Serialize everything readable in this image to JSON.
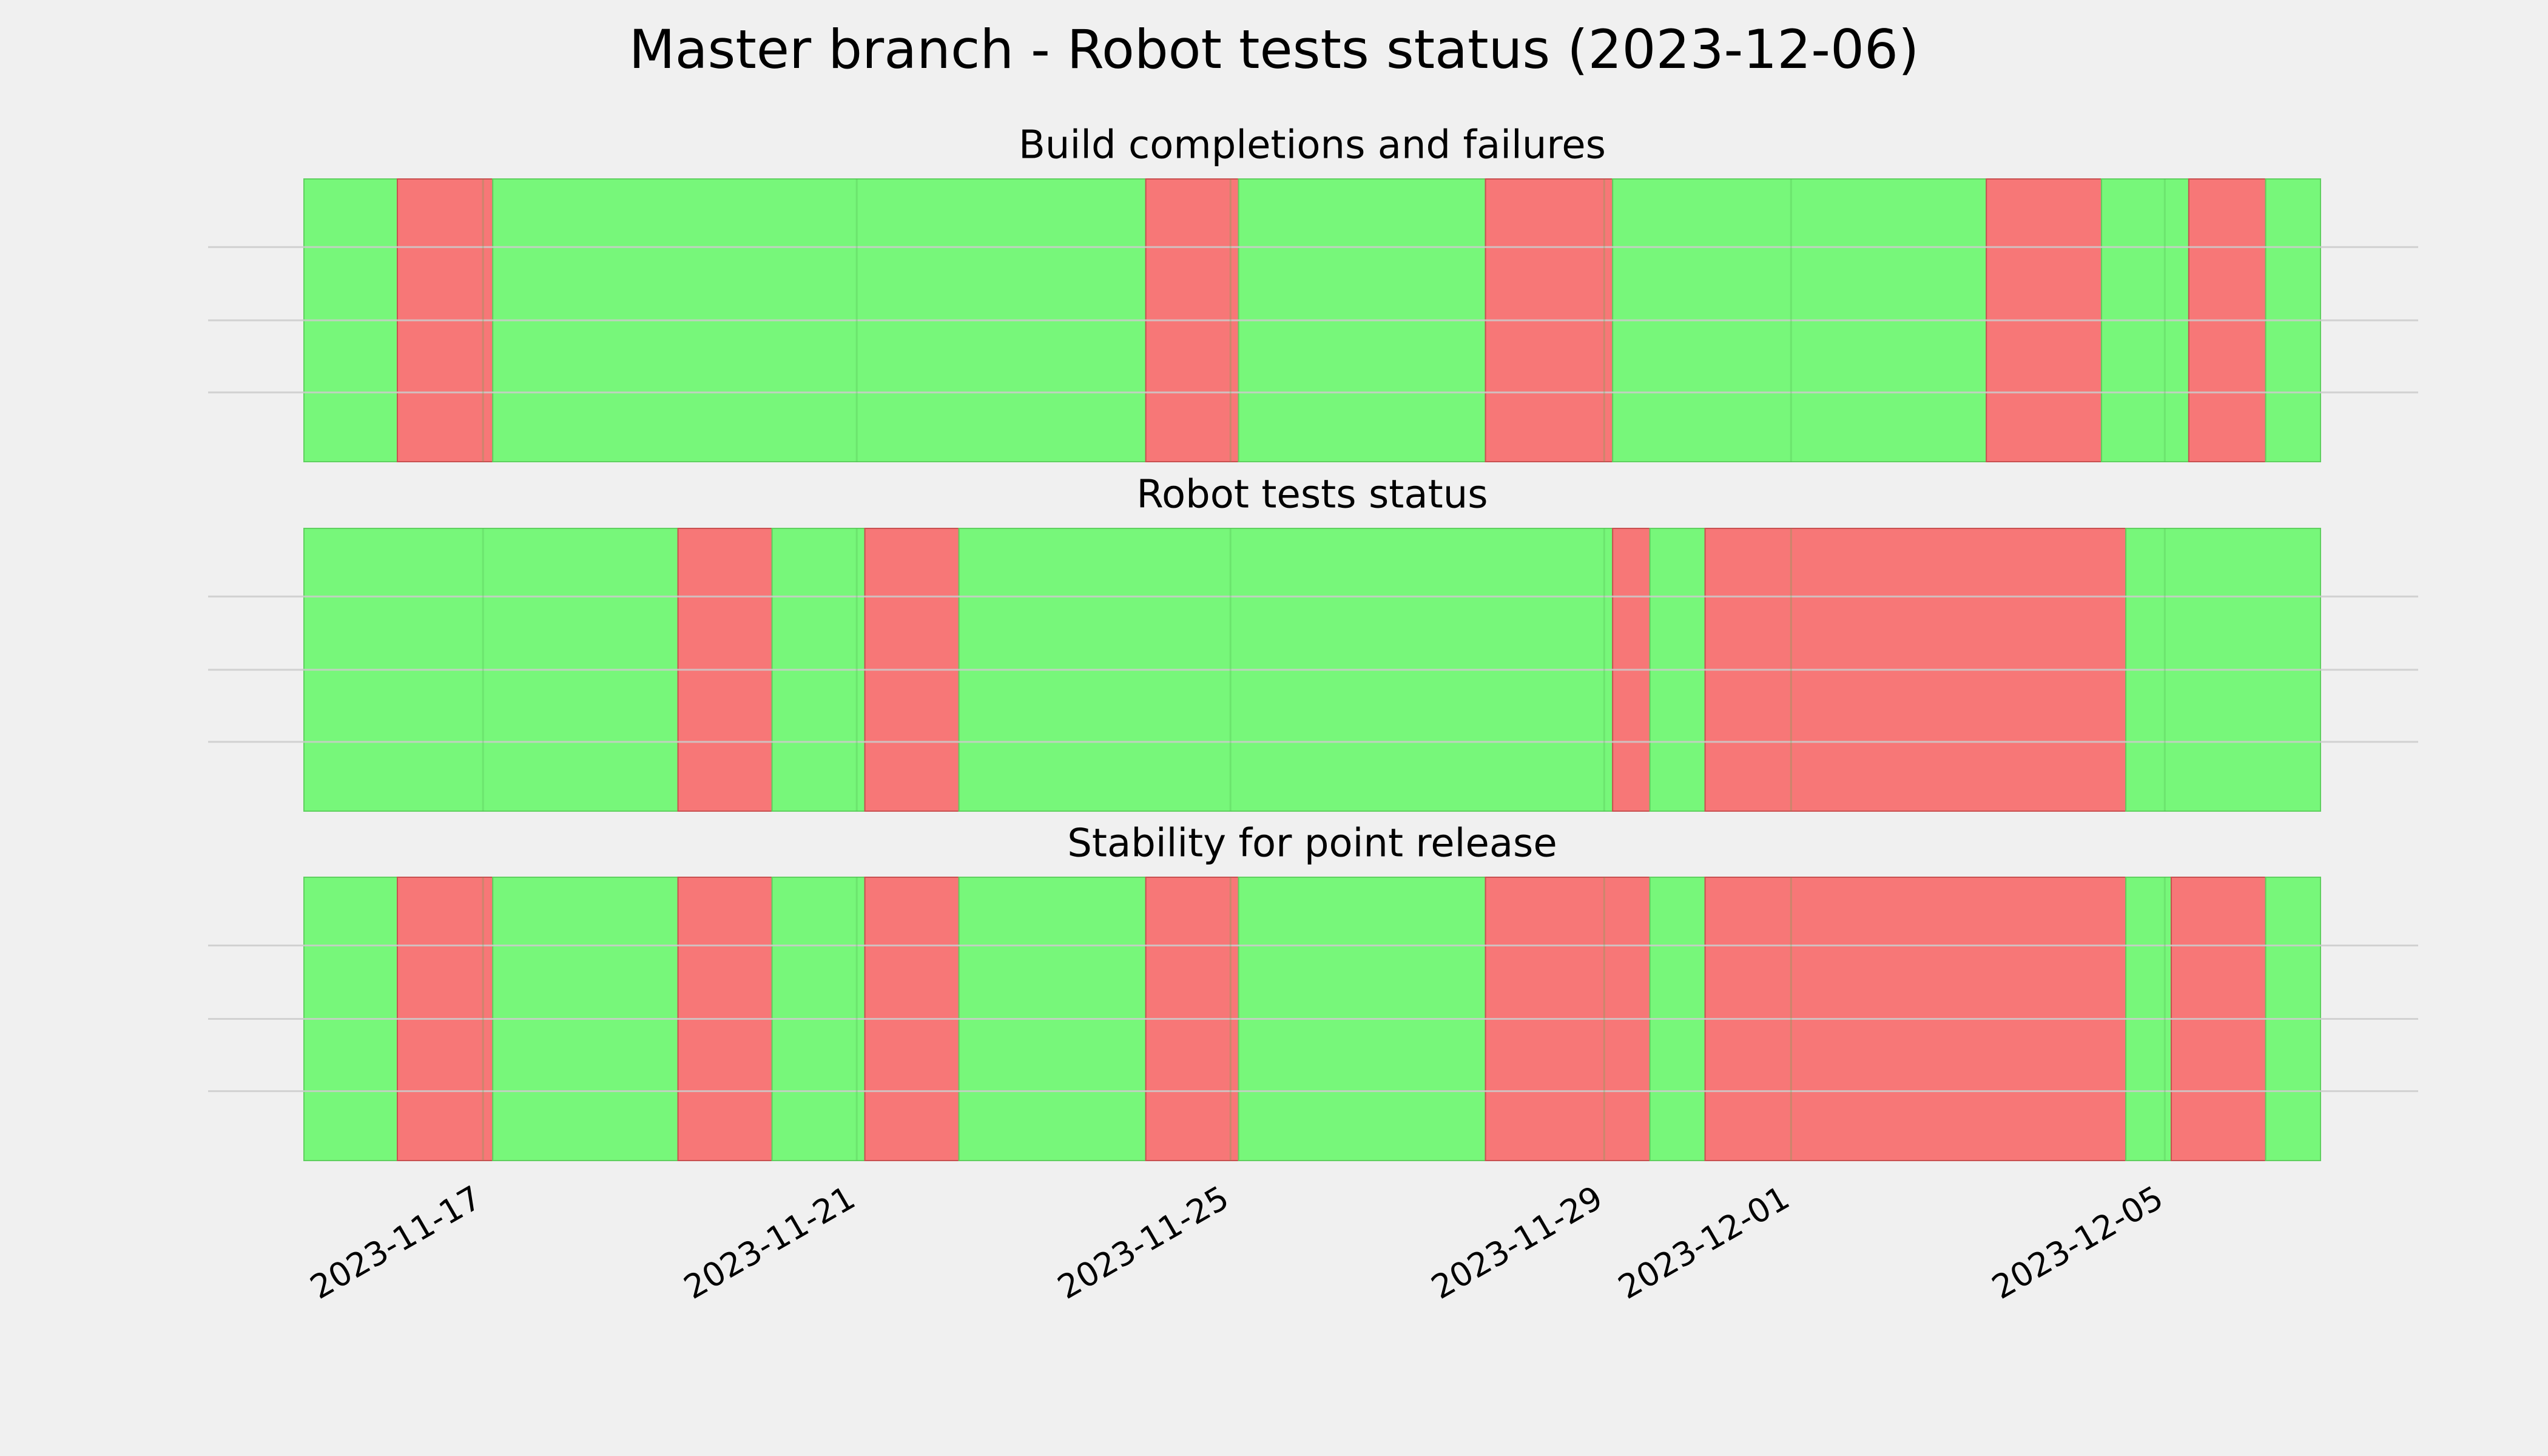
{
  "title": "Master branch - Robot tests status (2023-12-06)",
  "chart_data": [
    {
      "type": "timeline",
      "title": "Build completions and failures",
      "x": [
        "2023-11-15T02:00",
        "2023-11-16T02:00",
        "2023-11-17T02:30",
        "2023-11-24T02:15",
        "2023-11-25T02:05",
        "2023-11-27T17:30",
        "2023-11-29T02:10",
        "2023-12-03T02:10",
        "2023-12-04T07:45",
        "2023-12-05T06:10",
        "2023-12-06T01:55",
        "2023-12-06T16:00"
      ],
      "colors": [
        "#77f77a",
        "#f77777",
        "#77f77a",
        "#f77777",
        "#77f77a",
        "#f77777",
        "#77f77a",
        "#f77777",
        "#77f77a",
        "#f77777",
        "#77f77a"
      ],
      "xlim": [
        "2023-11-15T02:00",
        "2023-12-06T16:00"
      ],
      "xticks": [
        "2023-11-17",
        "2023-11-21",
        "2023-11-25",
        "2023-11-29",
        "2023-12-01",
        "2023-12-05"
      ],
      "grid": true
    },
    {
      "type": "timeline",
      "title": "Robot tests status",
      "x": [
        "2023-11-15T02:00",
        "2023-11-19T02:05",
        "2023-11-20T02:15",
        "2023-11-21T02:05",
        "2023-11-22T02:15",
        "2023-11-29T02:10",
        "2023-11-29T11:45",
        "2023-11-30T01:55",
        "2023-12-04T14:00",
        "2023-12-06T16:00"
      ],
      "colors": [
        "#77f77a",
        "#f77777",
        "#77f77a",
        "#f77777",
        "#77f77a",
        "#f77777",
        "#77f77a",
        "#f77777",
        "#77f77a"
      ],
      "xlim": [
        "2023-11-15T02:00",
        "2023-12-06T16:00"
      ],
      "xticks": [
        "2023-11-17",
        "2023-11-21",
        "2023-11-25",
        "2023-11-29",
        "2023-12-01",
        "2023-12-05"
      ],
      "grid": true
    },
    {
      "type": "timeline",
      "title": "Stability for point release",
      "x": [
        "2023-11-15T02:00",
        "2023-11-16T02:00",
        "2023-11-17T02:30",
        "2023-11-19T02:05",
        "2023-11-20T02:15",
        "2023-11-21T02:05",
        "2023-11-22T02:15",
        "2023-11-24T02:15",
        "2023-11-25T02:05",
        "2023-11-27T17:30",
        "2023-11-29T11:45",
        "2023-11-30T01:55",
        "2023-12-04T14:00",
        "2023-12-05T01:40",
        "2023-12-06T01:55",
        "2023-12-06T16:00"
      ],
      "colors": [
        "#77f77a",
        "#f77777",
        "#77f77a",
        "#f77777",
        "#77f77a",
        "#f77777",
        "#77f77a",
        "#f77777",
        "#77f77a",
        "#f77777",
        "#77f77a",
        "#f77777",
        "#77f77a",
        "#f77777",
        "#77f77a"
      ],
      "xlim": [
        "2023-11-15T02:00",
        "2023-12-06T16:00"
      ],
      "xticks": [
        "2023-11-17",
        "2023-11-21",
        "2023-11-25",
        "2023-11-29",
        "2023-12-01",
        "2023-12-05"
      ],
      "grid": true,
      "show_tick_labels": true
    }
  ]
}
